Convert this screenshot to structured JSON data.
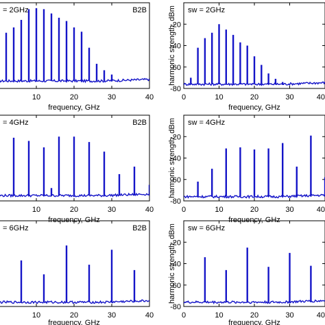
{
  "chart_data": [
    {
      "type": "line",
      "panel": "left-row1",
      "annotation_left": "= 2GHz",
      "annotation_right": "B2B",
      "xlabel": "frequency, GHz",
      "ylabel": "",
      "xlim": [
        0,
        40
      ],
      "ylim": [
        -80,
        0
      ],
      "xticks": [
        "10",
        "20",
        "30",
        "40"
      ],
      "yticks": [],
      "floor": -73,
      "series": [
        {
          "x": [
            2,
            4,
            6,
            8,
            10,
            12,
            14,
            16,
            18,
            20,
            22,
            24,
            26,
            28,
            30
          ],
          "values": [
            -28,
            -23,
            -16,
            -6,
            -5,
            -6,
            -10,
            -14,
            -17,
            -23,
            -27,
            -42,
            -57,
            -63,
            -67
          ]
        }
      ]
    },
    {
      "type": "line",
      "panel": "right-row1",
      "annotation_left": "sw = 2GHz",
      "ylabel": "harmonic strength, dBm",
      "xlabel": "frequency, GHz",
      "xlim": [
        0,
        40
      ],
      "ylim": [
        -80,
        0
      ],
      "xticks": [
        "0",
        "10",
        "20",
        "30",
        "40"
      ],
      "yticks": [
        "-20",
        "-40",
        "-60",
        "-80"
      ],
      "floor": -76,
      "series": [
        {
          "x": [
            2,
            4,
            6,
            8,
            10,
            12,
            14,
            16,
            18,
            20,
            22,
            24,
            26,
            28
          ],
          "values": [
            -70,
            -42,
            -33,
            -28,
            -20,
            -25,
            -30,
            -37,
            -40,
            -50,
            -58,
            -66,
            -71,
            -74
          ]
        }
      ]
    },
    {
      "type": "line",
      "panel": "left-row2",
      "annotation_left": "= 4GHz",
      "annotation_right": "B2B",
      "xlabel": "frequency, GHz",
      "ylabel": "",
      "xlim": [
        0,
        40
      ],
      "ylim": [
        -80,
        0
      ],
      "xticks": [
        "10",
        "20",
        "30",
        "40"
      ],
      "yticks": [],
      "floor": -75,
      "series": [
        {
          "x": [
            4,
            8,
            12,
            14,
            16,
            20,
            24,
            28,
            32,
            36,
            40
          ],
          "values": [
            -21,
            -24,
            -30,
            -68,
            -20,
            -20,
            -25,
            -34,
            -55,
            -48,
            -65
          ]
        }
      ]
    },
    {
      "type": "line",
      "panel": "right-row2",
      "annotation_left": "sw = 4GHz",
      "ylabel": "harmonic strength, dBm",
      "xlabel": "frequency, GHz",
      "xlim": [
        0,
        40
      ],
      "ylim": [
        -80,
        0
      ],
      "xticks": [
        "0",
        "10",
        "20",
        "30",
        "40"
      ],
      "yticks": [
        "-20",
        "-40",
        "-60",
        "-80"
      ],
      "floor": -76,
      "series": [
        {
          "x": [
            4,
            8,
            12,
            16,
            20,
            24,
            28,
            32,
            36,
            40
          ],
          "values": [
            -62,
            -50,
            -31,
            -30,
            -32,
            -31,
            -26,
            -48,
            -19,
            -58
          ]
        }
      ]
    },
    {
      "type": "line",
      "panel": "left-row3",
      "annotation_left": "= 6GHz",
      "annotation_right": "B2B",
      "xlabel": "frequency, GHz",
      "ylabel": "",
      "xlim": [
        0,
        40
      ],
      "ylim": [
        -80,
        0
      ],
      "xticks": [
        "10",
        "20",
        "30",
        "40"
      ],
      "yticks": [],
      "floor": -76,
      "series": [
        {
          "x": [
            6,
            12,
            18,
            24,
            30,
            36
          ],
          "values": [
            -37,
            -50,
            -23,
            -41,
            -27,
            -46
          ]
        }
      ]
    },
    {
      "type": "line",
      "panel": "right-row3",
      "annotation_left": "sw = 6GHz",
      "ylabel": "harmonic strength, dBm",
      "xlabel": "frequency, GHz",
      "xlim": [
        0,
        40
      ],
      "ylim": [
        -80,
        0
      ],
      "xticks": [
        "0",
        "10",
        "20",
        "30",
        "40"
      ],
      "yticks": [
        "-20",
        "-40",
        "-60",
        "-80"
      ],
      "floor": -76,
      "series": [
        {
          "x": [
            6,
            12,
            18,
            24,
            30,
            36
          ],
          "values": [
            -34,
            -46,
            -25,
            -43,
            -30,
            -42
          ]
        }
      ]
    }
  ],
  "colors": {
    "trace": "#1414c8",
    "axes": "#000000",
    "background": "#ffffff"
  }
}
